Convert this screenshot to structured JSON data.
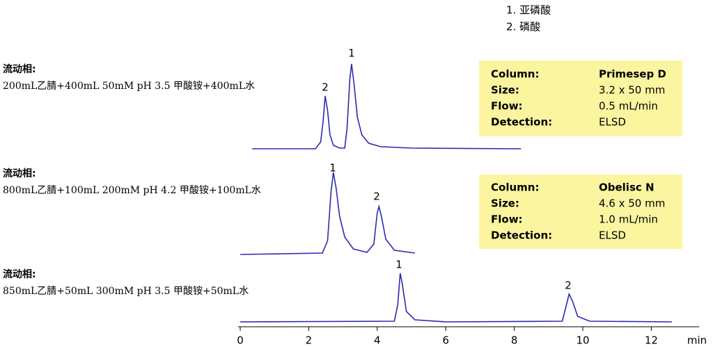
{
  "chart_data": {
    "type": "line",
    "color": "#2b2bb0",
    "xlim": [
      0,
      13.4
    ],
    "xticks": [
      0,
      2,
      4,
      6,
      8,
      10,
      12
    ],
    "xlabel": "min",
    "legend": [
      "1.  亚磷酸",
      "2.  磷酸"
    ],
    "series": [
      {
        "mobile_phase_label": "流动相:",
        "mobile_phase": "200mL乙腈+400mL 50mM pH 3.5 甲酸铵+400mL水",
        "peak_labels": [
          "2",
          "1"
        ],
        "x": [
          0.35,
          2.2,
          2.35,
          2.42,
          2.48,
          2.55,
          2.62,
          2.72,
          2.9,
          3.05,
          3.12,
          3.2,
          3.25,
          3.32,
          3.42,
          3.55,
          3.75,
          4.1,
          5,
          8.2
        ],
        "values": [
          0,
          0,
          10,
          40,
          76,
          55,
          20,
          5,
          1,
          1,
          30,
          100,
          122,
          95,
          45,
          20,
          8,
          3,
          1,
          0
        ],
        "info": [
          [
            "Column:",
            "Primesep D"
          ],
          [
            "Size:",
            "3.2 x 50 mm"
          ],
          [
            "Flow:",
            "0.5 mL/min"
          ],
          [
            "Detection:",
            "ELSD"
          ]
        ]
      },
      {
        "mobile_phase_label": "流动相:",
        "mobile_phase": "800mL乙腈+100mL 200mM pH 4.2 甲酸铵+100mL水",
        "peak_labels": [
          "1",
          "2"
        ],
        "x": [
          0,
          2.4,
          2.55,
          2.65,
          2.72,
          2.8,
          2.9,
          3.05,
          3.3,
          3.7,
          3.9,
          4.0,
          4.05,
          4.12,
          4.25,
          4.5,
          5.1
        ],
        "values": [
          0,
          2,
          20,
          90,
          118,
          95,
          55,
          25,
          8,
          3,
          15,
          60,
          69,
          55,
          22,
          6,
          2
        ],
        "info": [
          [
            "Column:",
            "Obelisc N"
          ],
          [
            "Size:",
            "4.6 x 50 mm"
          ],
          [
            "Flow:",
            "1.0 mL/min"
          ],
          [
            "Detection:",
            "ELSD"
          ]
        ]
      },
      {
        "mobile_phase_label": "流动相:",
        "mobile_phase": "850mL乙腈+50mL 300mM pH 3.5 甲酸铵+50mL水",
        "peak_labels": [
          "1",
          "2"
        ],
        "x": [
          0,
          4.5,
          4.6,
          4.67,
          4.73,
          4.85,
          5.1,
          6,
          9.4,
          9.5,
          9.6,
          9.7,
          9.85,
          10.2,
          12.6
        ],
        "values": [
          0,
          1,
          25,
          70,
          55,
          15,
          3,
          0,
          1,
          20,
          40,
          30,
          8,
          1,
          0
        ]
      }
    ]
  }
}
